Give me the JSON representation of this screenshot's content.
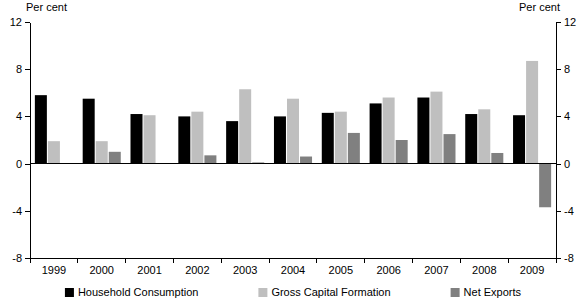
{
  "chart_data": {
    "type": "bar",
    "y_label": "Per cent",
    "y2_label": "Per cent",
    "categories": [
      "1999",
      "2000",
      "2001",
      "2002",
      "2003",
      "2004",
      "2005",
      "2006",
      "2007",
      "2008",
      "2009"
    ],
    "series": [
      {
        "name": "Household Consumption",
        "color": "#000000",
        "values": [
          5.8,
          5.5,
          4.2,
          4.0,
          3.6,
          4.0,
          4.3,
          5.1,
          5.6,
          4.2,
          4.1
        ]
      },
      {
        "name": "Gross Capital Formation",
        "color": "#bfbfbf",
        "values": [
          1.9,
          1.9,
          4.1,
          4.4,
          6.3,
          5.5,
          4.4,
          5.6,
          6.1,
          4.6,
          8.7
        ]
      },
      {
        "name": "Net Exports",
        "color": "#808080",
        "values": [
          0.0,
          1.0,
          0.0,
          0.7,
          0.1,
          0.6,
          2.6,
          2.0,
          2.5,
          0.9,
          -3.7
        ]
      }
    ],
    "ylim": [
      -8,
      12
    ],
    "yticks": [
      -8,
      -4,
      0,
      4,
      8,
      12
    ],
    "y2lim": [
      -8,
      12
    ],
    "y2ticks": [
      -8,
      -4,
      0,
      4,
      8,
      12
    ],
    "grid": false,
    "legend": "bottom"
  }
}
